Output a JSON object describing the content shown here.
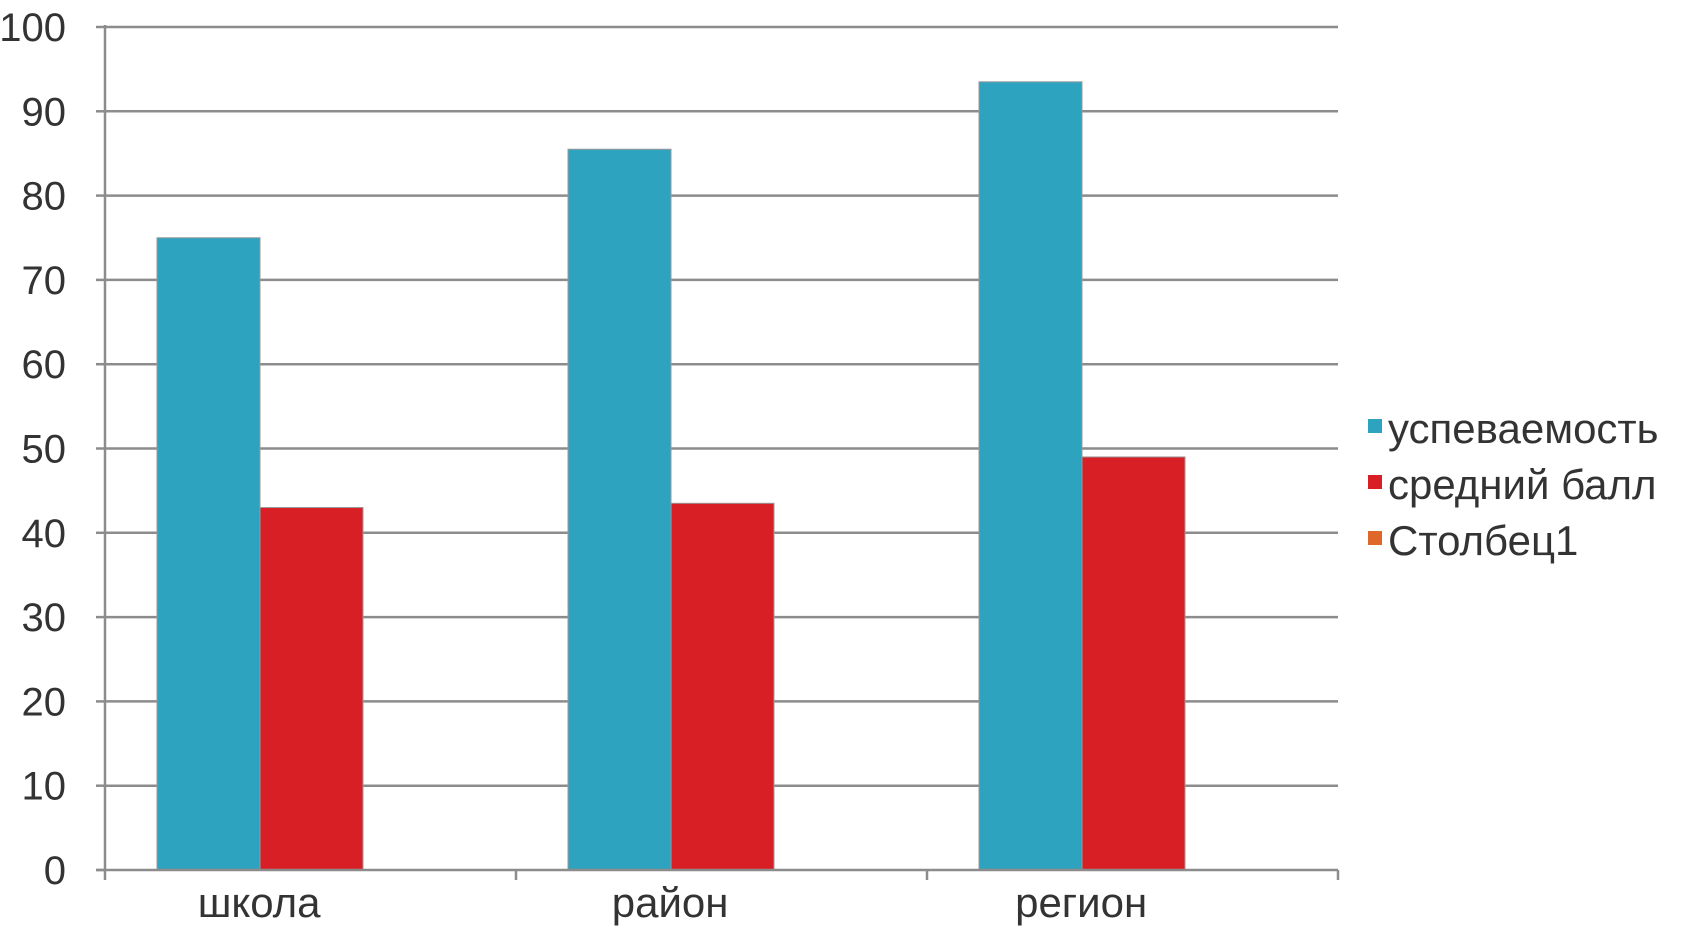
{
  "chart_data": {
    "type": "bar",
    "categories": [
      "школа",
      "район",
      "регион"
    ],
    "series": [
      {
        "name": "успеваемость",
        "values": [
          75,
          85.5,
          93.5
        ],
        "color": "#2ea3bf"
      },
      {
        "name": "средний балл",
        "values": [
          43,
          43.5,
          49
        ],
        "color": "#d91f26"
      },
      {
        "name": "Столбец1",
        "values": [
          null,
          null,
          null
        ],
        "color": "#e0672a"
      }
    ],
    "ylim": [
      0,
      100
    ],
    "yticks": [
      0,
      10,
      20,
      30,
      40,
      50,
      60,
      70,
      80,
      90,
      100
    ],
    "grid": true,
    "legend_position": "right"
  }
}
